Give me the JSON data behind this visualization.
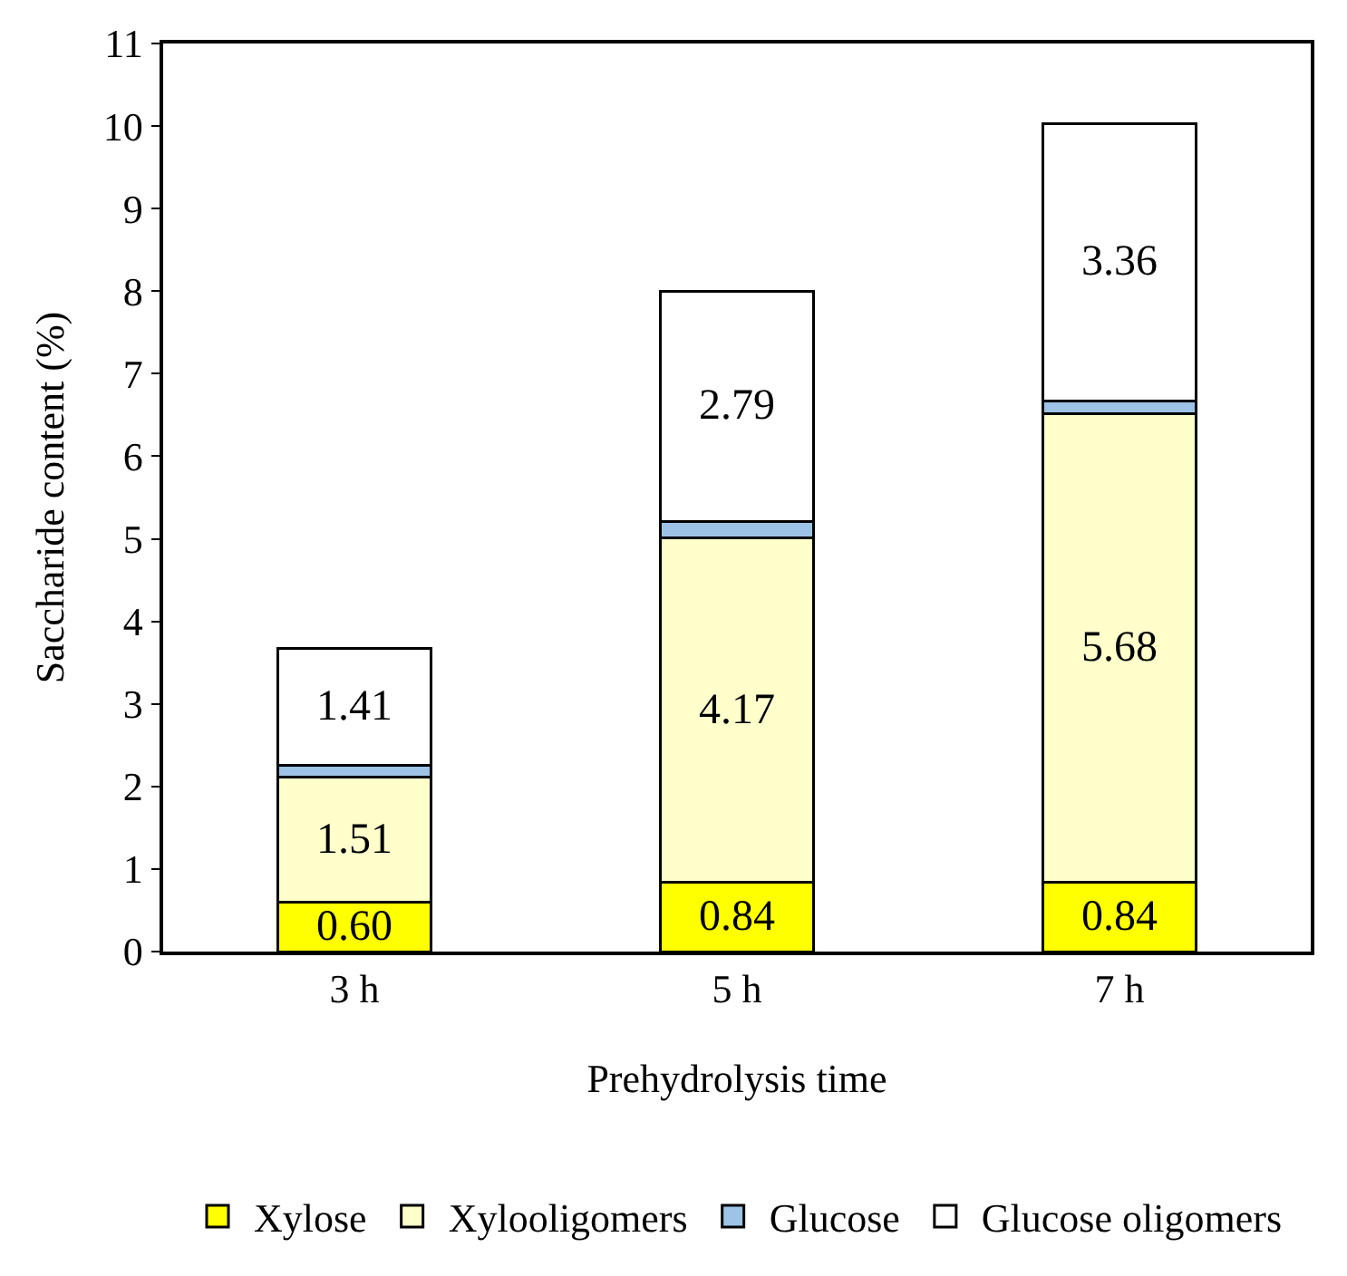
{
  "chart_data": {
    "type": "bar",
    "stacked": true,
    "xlabel": "Prehydrolysis time",
    "ylabel": "Saccharide content (%)",
    "categories": [
      "3 h",
      "5 h",
      "7 h"
    ],
    "series": [
      {
        "name": "Xylose",
        "color": "#ffff00",
        "values": [
          0.6,
          0.84,
          0.84
        ],
        "value_labels": [
          "0.60",
          "0.84",
          "0.84"
        ]
      },
      {
        "name": "Xylooligomers",
        "color": "#ffffcc",
        "values": [
          1.51,
          4.17,
          5.68
        ],
        "value_labels": [
          "1.51",
          "4.17",
          "5.68"
        ]
      },
      {
        "name": "Glucose",
        "color": "#9dc3e6",
        "values": [
          0.15,
          0.2,
          0.15
        ],
        "value_labels": [
          null,
          null,
          null
        ]
      },
      {
        "name": "Glucose oligomers",
        "color": "#ffffff",
        "values": [
          1.41,
          2.79,
          3.36
        ],
        "value_labels": [
          "1.41",
          "2.79",
          "3.36"
        ]
      }
    ],
    "ylim": [
      0,
      11
    ],
    "yticks": [
      0,
      1,
      2,
      3,
      4,
      5,
      6,
      7,
      8,
      9,
      10,
      11
    ],
    "legend": "bottom"
  }
}
